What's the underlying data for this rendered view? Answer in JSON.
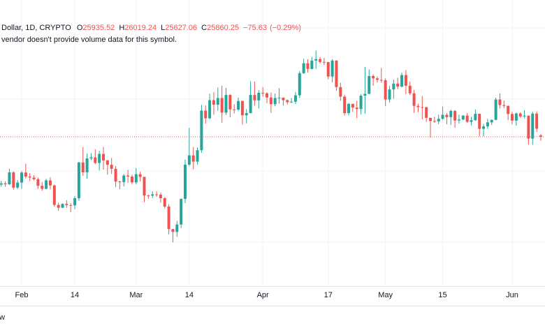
{
  "chart_data": {
    "type": "candlestick",
    "symbol": "Dollar, 1D, CRYPTO",
    "ohlc_labels": [
      "O",
      "H",
      "L",
      "C"
    ],
    "change": "−75.63",
    "change_percent": "(−0.29%)",
    "notice": "vendor doesn't provide volume data for this symbol.",
    "footer": "w",
    "up_color": "#26a69a",
    "down_color": "#ef5350",
    "ylim": [
      16960,
      34010
    ],
    "grid": true,
    "price_line": true,
    "categories": [
      null,
      null,
      null,
      null,
      null,
      "Feb",
      null,
      null,
      null,
      null,
      null,
      null,
      null,
      null,
      null,
      null,
      null,
      null,
      "14",
      null,
      null,
      null,
      null,
      null,
      null,
      null,
      null,
      null,
      null,
      null,
      null,
      null,
      null,
      "Mar",
      null,
      null,
      null,
      null,
      null,
      null,
      null,
      null,
      null,
      null,
      null,
      null,
      "14",
      null,
      null,
      null,
      null,
      null,
      null,
      null,
      null,
      null,
      null,
      null,
      null,
      null,
      null,
      null,
      null,
      null,
      "Apr",
      null,
      null,
      null,
      null,
      null,
      null,
      null,
      null,
      null,
      null,
      null,
      null,
      null,
      null,
      null,
      "17",
      null,
      null,
      null,
      null,
      null,
      null,
      null,
      null,
      null,
      null,
      null,
      null,
      null,
      "May",
      null,
      null,
      null,
      null,
      null,
      null,
      null,
      null,
      null,
      null,
      null,
      null,
      null,
      "15",
      null,
      null,
      null,
      null,
      null,
      null,
      null,
      null,
      null,
      null,
      null,
      null,
      null,
      null,
      null,
      null,
      "Jun",
      null,
      null,
      null,
      null,
      null,
      null,
      null
    ],
    "open": [
      23010,
      23080,
      23030,
      23740,
      22830,
      23130,
      23730,
      23490,
      23430,
      23330,
      22940,
      22760,
      23260,
      22960,
      21800,
      21630,
      21860,
      21790,
      21770,
      22200,
      24330,
      23740,
      24570,
      24630,
      24300,
      24840,
      24450,
      24190,
      23950,
      23190,
      23160,
      23550,
      23490,
      23140,
      23630,
      23470,
      22360,
      22350,
      22430,
      22410,
      22200,
      21700,
      20360,
      20190,
      20630,
      22160,
      24200,
      24750,
      24380,
      25060,
      27420,
      26960,
      28040,
      27770,
      28170,
      27300,
      28350,
      27490,
      27480,
      27990,
      27140,
      27270,
      28350,
      28030,
      28480,
      28450,
      28200,
      27800,
      28170,
      28190,
      28040,
      27920,
      27950,
      28330,
      29650,
      30240,
      29900,
      30400,
      30490,
      30320,
      30310,
      29450,
      30400,
      28820,
      28250,
      27270,
      27820,
      27600,
      27510,
      28310,
      28420,
      29480,
      29340,
      29250,
      29230,
      28080,
      28680,
      29030,
      28850,
      29540,
      28900,
      28450,
      27700,
      27630,
      27620,
      26990,
      26800,
      26780,
      26930,
      27170,
      27030,
      27400,
      26830,
      26890,
      27120,
      26750,
      26850,
      27230,
      26330,
      26480,
      26720,
      26870,
      28080,
      27750,
      27700,
      27220,
      26820,
      27250,
      27070,
      27120,
      25750,
      27240,
      25935.52
    ],
    "high": [
      23240,
      23200,
      23950,
      23810,
      23290,
      23810,
      24250,
      23690,
      23570,
      23430,
      23160,
      23350,
      23450,
      23010,
      21930,
      21900,
      22080,
      21900,
      22320,
      24360,
      25250,
      24870,
      24890,
      25120,
      25020,
      25250,
      24480,
      24600,
      24120,
      23240,
      23650,
      23890,
      23600,
      24000,
      23780,
      23480,
      22410,
      22610,
      22600,
      22530,
      22270,
      21830,
      20370,
      20850,
      22180,
      24500,
      26390,
      25250,
      25220,
      27760,
      27720,
      28430,
      28510,
      28800,
      28900,
      28770,
      28400,
      27800,
      28200,
      28020,
      27510,
      29170,
      29150,
      28640,
      28820,
      28510,
      28490,
      28440,
      28760,
      28200,
      28080,
      28170,
      28530,
      29770,
      30510,
      30480,
      30620,
      31000,
      30600,
      30560,
      30320,
      30480,
      30420,
      29080,
      28370,
      27880,
      27830,
      28000,
      28400,
      30020,
      29880,
      29570,
      29450,
      29960,
      29340,
      28890,
      29270,
      29380,
      29680,
      29830,
      29150,
      28650,
      27830,
      28290,
      27650,
      26990,
      27050,
      27180,
      27650,
      27270,
      27480,
      27460,
      27180,
      27150,
      27280,
      27050,
      27490,
      27240,
      26630,
      26930,
      26890,
      28180,
      28450,
      28020,
      27720,
      27350,
      27300,
      27320,
      27450,
      27130,
      27360,
      27380,
      26019.24
    ],
    "low": [
      22880,
      22880,
      22990,
      22710,
      22740,
      22760,
      23380,
      23220,
      23260,
      22760,
      22640,
      22740,
      22720,
      21690,
      21450,
      21600,
      21630,
      21370,
      21550,
      22050,
      23530,
      23360,
      24470,
      24230,
      23850,
      23900,
      23600,
      23640,
      22860,
      22740,
      22900,
      23110,
      23040,
      23020,
      23190,
      21970,
      22170,
      22210,
      22280,
      21930,
      21600,
      20050,
      19570,
      19900,
      20420,
      21910,
      24130,
      23920,
      24200,
      24900,
      26640,
      26900,
      27170,
      27410,
      26700,
      27160,
      27020,
      27250,
      27380,
      26590,
      26660,
      27250,
      27720,
      27550,
      28240,
      27860,
      27280,
      27680,
      27830,
      27730,
      27790,
      27870,
      27810,
      28170,
      29610,
      29680,
      29870,
      29900,
      30240,
      30130,
      29290,
      29100,
      28600,
      28000,
      27130,
      27140,
      27340,
      26970,
      27200,
      27240,
      28390,
      28900,
      29090,
      29080,
      27680,
      27900,
      28130,
      28700,
      28800,
      28400,
      28350,
      27290,
      27330,
      26900,
      26750,
      25810,
      26690,
      26610,
      26880,
      26600,
      26560,
      26400,
      26650,
      26840,
      26680,
      26540,
      26800,
      25870,
      25880,
      26340,
      26560,
      26840,
      27550,
      27570,
      26850,
      26600,
      26520,
      26990,
      26960,
      25390,
      25380,
      26150,
      25627.06
    ],
    "close": [
      23080,
      23030,
      23740,
      22830,
      23130,
      23730,
      23490,
      23430,
      23330,
      22940,
      22760,
      23260,
      22960,
      21800,
      21630,
      21860,
      21790,
      21770,
      22200,
      24330,
      23740,
      24570,
      24630,
      24300,
      24840,
      24450,
      24190,
      23950,
      23190,
      23160,
      23550,
      23490,
      23140,
      23630,
      23470,
      22360,
      22350,
      22430,
      22410,
      22200,
      21700,
      20360,
      20190,
      20630,
      22160,
      24200,
      24750,
      24380,
      25060,
      27420,
      26960,
      28040,
      27770,
      28170,
      27300,
      28350,
      27490,
      27480,
      27990,
      27140,
      27270,
      28350,
      28030,
      28480,
      28450,
      28200,
      27800,
      28170,
      28190,
      28040,
      27920,
      27950,
      28330,
      29650,
      30240,
      29900,
      30400,
      30490,
      30320,
      30310,
      29450,
      30400,
      28820,
      28250,
      27270,
      27820,
      27600,
      27510,
      28310,
      28420,
      29480,
      29340,
      29250,
      29230,
      28080,
      28680,
      29030,
      28850,
      29540,
      28900,
      28450,
      27700,
      27630,
      27620,
      26990,
      26800,
      26780,
      26930,
      27170,
      27030,
      27400,
      26830,
      26890,
      27120,
      26750,
      26850,
      27230,
      26330,
      26480,
      26720,
      26870,
      28080,
      27750,
      27700,
      27220,
      26820,
      27250,
      27070,
      27120,
      25750,
      27240,
      26340,
      25860.25
    ]
  }
}
